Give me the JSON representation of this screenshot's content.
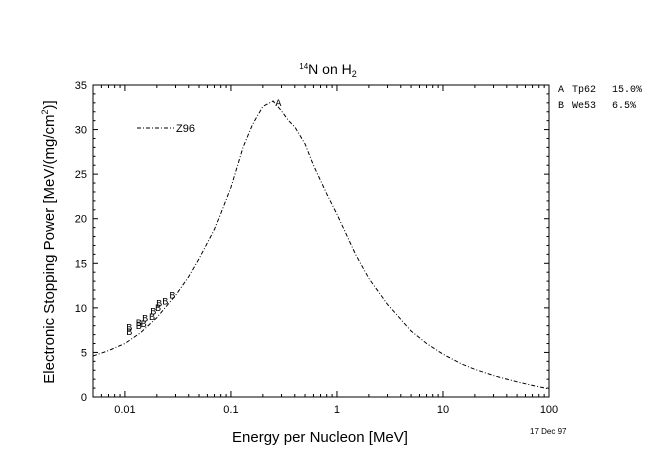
{
  "chart_data": {
    "type": "line",
    "title_main": "N on H",
    "title_sup": "14",
    "title_sub": "2",
    "xlabel": "Energy per Nucleon [MeV]",
    "ylabel": "Electronic Stopping Power [MeV/(mg/cm",
    "ylabel_sup": "2",
    "ylabel_tail": ")]",
    "x_scale": "log",
    "xlim": [
      0.005,
      100
    ],
    "ylim": [
      0,
      35
    ],
    "x_ticks": [
      {
        "value": 0.01,
        "label": "0.01"
      },
      {
        "value": 0.1,
        "label": "0.1"
      },
      {
        "value": 1,
        "label": "1"
      },
      {
        "value": 10,
        "label": "10"
      },
      {
        "value": 100,
        "label": "100"
      }
    ],
    "y_ticks": [
      {
        "value": 0,
        "label": "0"
      },
      {
        "value": 5,
        "label": "5"
      },
      {
        "value": 10,
        "label": "10"
      },
      {
        "value": 15,
        "label": "15"
      },
      {
        "value": 20,
        "label": "20"
      },
      {
        "value": 25,
        "label": "25"
      },
      {
        "value": 30,
        "label": "30"
      },
      {
        "value": 35,
        "label": "35"
      }
    ],
    "grid": false,
    "series": [
      {
        "name": "Z96",
        "style": "dash-dot",
        "color": "#000000",
        "x": [
          0.005,
          0.007,
          0.01,
          0.014,
          0.02,
          0.03,
          0.04,
          0.05,
          0.07,
          0.1,
          0.13,
          0.16,
          0.2,
          0.25,
          0.3,
          0.35,
          0.4,
          0.5,
          0.6,
          0.8,
          1,
          1.5,
          2,
          3,
          5,
          7,
          10,
          15,
          20,
          30,
          50,
          70,
          100
        ],
        "y": [
          4.6,
          5.2,
          6.0,
          7.2,
          8.9,
          11.4,
          13.5,
          15.5,
          18.8,
          23.5,
          28.0,
          30.6,
          32.6,
          33.2,
          32.1,
          31.0,
          30.3,
          28.4,
          26.0,
          22.8,
          20.5,
          16.0,
          13.3,
          10.4,
          7.4,
          6.0,
          4.8,
          3.7,
          3.1,
          2.4,
          1.7,
          1.3,
          0.9
        ]
      }
    ],
    "legend": {
      "label": "Z96",
      "placement": "top-left"
    },
    "experimental": [
      {
        "marker": "A",
        "x": 0.28,
        "y": 33.1
      },
      {
        "marker": "B",
        "x": 0.011,
        "y": 7.4
      },
      {
        "marker": "B",
        "x": 0.011,
        "y": 7.9
      },
      {
        "marker": "B",
        "x": 0.0135,
        "y": 8.1
      },
      {
        "marker": "B",
        "x": 0.0135,
        "y": 8.4
      },
      {
        "marker": "B",
        "x": 0.015,
        "y": 8.3
      },
      {
        "marker": "B",
        "x": 0.0155,
        "y": 8.9
      },
      {
        "marker": "B",
        "x": 0.018,
        "y": 9.1
      },
      {
        "marker": "B",
        "x": 0.0185,
        "y": 9.7
      },
      {
        "marker": "B",
        "x": 0.0205,
        "y": 10.1
      },
      {
        "marker": "B",
        "x": 0.021,
        "y": 10.6
      },
      {
        "marker": "B",
        "x": 0.024,
        "y": 10.8
      },
      {
        "marker": "B",
        "x": 0.028,
        "y": 11.5
      }
    ],
    "reference_legend": [
      {
        "marker": "A",
        "ref": "Tp62",
        "err": "15.0%"
      },
      {
        "marker": "B",
        "ref": "We53",
        "err": "6.5%"
      }
    ],
    "date": "17 Dec 97"
  }
}
